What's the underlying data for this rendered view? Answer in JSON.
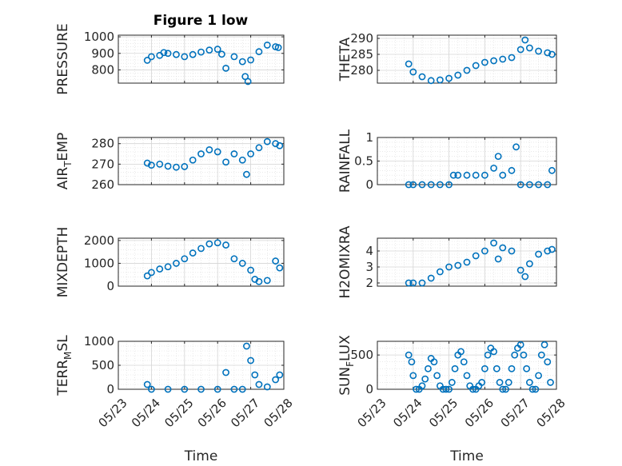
{
  "figure": {
    "title": "Figure 1 low"
  },
  "style": {
    "marker_color": "#0072BD",
    "axis_color": "#262626",
    "grid_color": "#dcdcdc"
  },
  "chart_data": [
    {
      "type": "scatter",
      "key": "pressure",
      "ylabel": "PRESSURE",
      "xlim": [
        "05/23",
        "05/28"
      ],
      "ylim": [
        720,
        1010
      ],
      "yticks": [
        800,
        900,
        1000
      ],
      "yticklabels": [
        "800",
        "900",
        "1000"
      ],
      "xticklabels": [],
      "xlabel": "",
      "grid": true,
      "marker": "circle",
      "x": [
        "05/23 21:00",
        "05/24 00:00",
        "05/24 06:00",
        "05/24 09:00",
        "05/24 12:00",
        "05/24 18:00",
        "05/25 00:00",
        "05/25 06:00",
        "05/25 12:00",
        "05/25 18:00",
        "05/26 00:00",
        "05/26 03:00",
        "05/26 06:00",
        "05/26 12:00",
        "05/26 18:00",
        "05/26 20:00",
        "05/26 22:00",
        "05/27 00:00",
        "05/27 06:00",
        "05/27 12:00",
        "05/27 18:00",
        "05/27 20:00"
      ],
      "y": [
        858,
        880,
        888,
        905,
        900,
        893,
        880,
        893,
        908,
        920,
        925,
        895,
        810,
        880,
        850,
        760,
        730,
        860,
        910,
        950,
        940,
        935
      ]
    },
    {
      "type": "scatter",
      "key": "theta",
      "ylabel": "THETA",
      "xlim": [
        "05/23",
        "05/28"
      ],
      "ylim": [
        276,
        291
      ],
      "yticks": [
        280,
        285,
        290
      ],
      "yticklabels": [
        "280",
        "285",
        "290"
      ],
      "xticklabels": [],
      "xlabel": "",
      "grid": true,
      "marker": "circle",
      "x": [
        "05/23 21:00",
        "05/24 00:00",
        "05/24 06:00",
        "05/24 12:00",
        "05/24 18:00",
        "05/25 00:00",
        "05/25 06:00",
        "05/25 12:00",
        "05/25 18:00",
        "05/26 00:00",
        "05/26 06:00",
        "05/26 12:00",
        "05/26 18:00",
        "05/27 00:00",
        "05/27 03:00",
        "05/27 06:00",
        "05/27 12:00",
        "05/27 18:00",
        "05/27 21:00"
      ],
      "y": [
        282,
        279.5,
        278,
        276.8,
        277,
        277.5,
        278.5,
        280,
        281.5,
        282.5,
        283,
        283.5,
        284,
        286.5,
        289.5,
        287,
        286,
        285.5,
        285
      ]
    },
    {
      "type": "scatter",
      "key": "air_temp",
      "ylabel": "AIR_TEMP",
      "ylabel_parts": [
        "AIR",
        "T",
        "EMP"
      ],
      "xlim": [
        "05/23",
        "05/28"
      ],
      "ylim": [
        260,
        283
      ],
      "yticks": [
        260,
        270,
        280
      ],
      "yticklabels": [
        "260",
        "270",
        "280"
      ],
      "xticklabels": [],
      "xlabel": "",
      "grid": true,
      "marker": "circle",
      "x": [
        "05/23 21:00",
        "05/24 00:00",
        "05/24 06:00",
        "05/24 12:00",
        "05/24 18:00",
        "05/25 00:00",
        "05/25 06:00",
        "05/25 12:00",
        "05/25 18:00",
        "05/26 00:00",
        "05/26 06:00",
        "05/26 12:00",
        "05/26 18:00",
        "05/26 21:00",
        "05/27 00:00",
        "05/27 06:00",
        "05/27 12:00",
        "05/27 18:00",
        "05/27 21:00"
      ],
      "y": [
        270.5,
        269.5,
        270,
        269,
        268.5,
        268.8,
        272,
        275,
        277,
        276,
        271,
        275,
        272,
        265,
        275,
        278,
        281,
        280,
        279
      ]
    },
    {
      "type": "scatter",
      "key": "rainfall",
      "ylabel": "RAINFALL",
      "xlim": [
        "05/23",
        "05/28"
      ],
      "ylim": [
        0,
        1
      ],
      "yticks": [
        0,
        0.5,
        1
      ],
      "yticklabels": [
        "0",
        "0.5",
        "1"
      ],
      "xticklabels": [],
      "xlabel": "",
      "grid": true,
      "marker": "circle",
      "x": [
        "05/23 21:00",
        "05/24 00:00",
        "05/24 06:00",
        "05/24 12:00",
        "05/24 18:00",
        "05/25 00:00",
        "05/25 03:00",
        "05/25 06:00",
        "05/25 12:00",
        "05/25 18:00",
        "05/26 00:00",
        "05/26 06:00",
        "05/26 09:00",
        "05/26 12:00",
        "05/26 18:00",
        "05/26 21:00",
        "05/27 00:00",
        "05/27 06:00",
        "05/27 12:00",
        "05/27 18:00",
        "05/27 21:00"
      ],
      "y": [
        0,
        0,
        0,
        0,
        0,
        0,
        0.2,
        0.2,
        0.2,
        0.2,
        0.2,
        0.35,
        0.6,
        0.2,
        0.3,
        0.8,
        0,
        0,
        0,
        0,
        0.3
      ]
    },
    {
      "type": "scatter",
      "key": "mixdepth",
      "ylabel": "MIXDEPTH",
      "xlim": [
        "05/23",
        "05/28"
      ],
      "ylim": [
        0,
        2100
      ],
      "yticks": [
        0,
        1000,
        2000
      ],
      "yticklabels": [
        "0",
        "1000",
        "2000"
      ],
      "xticklabels": [],
      "xlabel": "",
      "grid": true,
      "marker": "circle",
      "x": [
        "05/23 21:00",
        "05/24 00:00",
        "05/24 06:00",
        "05/24 12:00",
        "05/24 18:00",
        "05/25 00:00",
        "05/25 06:00",
        "05/25 12:00",
        "05/25 18:00",
        "05/26 00:00",
        "05/26 06:00",
        "05/26 12:00",
        "05/26 18:00",
        "05/27 00:00",
        "05/27 03:00",
        "05/27 06:00",
        "05/27 12:00",
        "05/27 18:00",
        "05/27 21:00"
      ],
      "y": [
        450,
        600,
        750,
        850,
        1000,
        1200,
        1450,
        1650,
        1850,
        1900,
        1800,
        1200,
        1000,
        700,
        300,
        200,
        250,
        1100,
        800
      ]
    },
    {
      "type": "scatter",
      "key": "h2omixra",
      "ylabel": "H2OMIXRA",
      "xlim": [
        "05/23",
        "05/28"
      ],
      "ylim": [
        1.8,
        4.8
      ],
      "yticks": [
        2,
        3,
        4
      ],
      "yticklabels": [
        "2",
        "3",
        "4"
      ],
      "xticklabels": [],
      "xlabel": "",
      "grid": true,
      "marker": "circle",
      "x": [
        "05/23 21:00",
        "05/24 00:00",
        "05/24 06:00",
        "05/24 12:00",
        "05/24 18:00",
        "05/25 00:00",
        "05/25 06:00",
        "05/25 12:00",
        "05/25 18:00",
        "05/26 00:00",
        "05/26 06:00",
        "05/26 09:00",
        "05/26 12:00",
        "05/26 18:00",
        "05/27 00:00",
        "05/27 03:00",
        "05/27 06:00",
        "05/27 12:00",
        "05/27 18:00",
        "05/27 21:00"
      ],
      "y": [
        2,
        2,
        2,
        2.3,
        2.7,
        3,
        3.1,
        3.3,
        3.7,
        4,
        4.5,
        3.5,
        4.2,
        4,
        2.8,
        2.4,
        3.2,
        3.8,
        4,
        4.1
      ]
    },
    {
      "type": "scatter",
      "key": "terr_msl",
      "ylabel": "TERR_MSL",
      "ylabel_parts": [
        "TERR",
        "M",
        "SL"
      ],
      "xlim": [
        "05/23",
        "05/28"
      ],
      "ylim": [
        0,
        1000
      ],
      "yticks": [
        0,
        500,
        1000
      ],
      "yticklabels": [
        "0",
        "500",
        "1000"
      ],
      "xticklabels": [
        "05/23",
        "05/24",
        "05/25",
        "05/26",
        "05/27",
        "05/28"
      ],
      "xlabel": "Time",
      "grid": true,
      "marker": "circle",
      "x": [
        "05/23 21:00",
        "05/24 00:00",
        "05/24 12:00",
        "05/25 00:00",
        "05/25 12:00",
        "05/26 00:00",
        "05/26 06:00",
        "05/26 12:00",
        "05/26 18:00",
        "05/26 21:00",
        "05/27 00:00",
        "05/27 03:00",
        "05/27 06:00",
        "05/27 12:00",
        "05/27 18:00",
        "05/27 21:00"
      ],
      "y": [
        100,
        0,
        0,
        0,
        0,
        0,
        350,
        0,
        0,
        900,
        600,
        300,
        100,
        50,
        200,
        300
      ]
    },
    {
      "type": "scatter",
      "key": "sun_flux",
      "ylabel": "SUN_FLUX",
      "ylabel_parts": [
        "SUN",
        "F",
        "LUX"
      ],
      "xlim": [
        "05/23",
        "05/28"
      ],
      "ylim": [
        0,
        700
      ],
      "yticks": [
        0,
        500
      ],
      "yticklabels": [
        "0",
        "500"
      ],
      "xticklabels": [
        "05/23",
        "05/24",
        "05/25",
        "05/26",
        "05/27",
        "05/28"
      ],
      "xlabel": "Time",
      "grid": true,
      "marker": "circle",
      "x": [
        "05/23 21:00",
        "05/23 23:00",
        "05/24 00:00",
        "05/24 02:00",
        "05/24 04:00",
        "05/24 06:00",
        "05/24 08:00",
        "05/24 10:00",
        "05/24 12:00",
        "05/24 14:00",
        "05/24 16:00",
        "05/24 18:00",
        "05/24 20:00",
        "05/24 22:00",
        "05/25 00:00",
        "05/25 02:00",
        "05/25 04:00",
        "05/25 06:00",
        "05/25 08:00",
        "05/25 10:00",
        "05/25 12:00",
        "05/25 14:00",
        "05/25 16:00",
        "05/25 18:00",
        "05/25 20:00",
        "05/25 22:00",
        "05/26 00:00",
        "05/26 02:00",
        "05/26 04:00",
        "05/26 06:00",
        "05/26 08:00",
        "05/26 10:00",
        "05/26 12:00",
        "05/26 14:00",
        "05/26 16:00",
        "05/26 18:00",
        "05/26 20:00",
        "05/26 22:00",
        "05/27 00:00",
        "05/27 02:00",
        "05/27 04:00",
        "05/27 06:00",
        "05/27 08:00",
        "05/27 10:00",
        "05/27 12:00",
        "05/27 14:00",
        "05/27 16:00",
        "05/27 18:00",
        "05/27 20:00"
      ],
      "y": [
        500,
        400,
        200,
        0,
        0,
        50,
        150,
        300,
        450,
        400,
        200,
        50,
        0,
        0,
        0,
        100,
        300,
        500,
        550,
        400,
        200,
        50,
        0,
        0,
        50,
        100,
        300,
        500,
        600,
        550,
        300,
        100,
        0,
        0,
        100,
        300,
        500,
        600,
        650,
        500,
        300,
        100,
        0,
        0,
        200,
        500,
        650,
        400,
        100
      ]
    }
  ]
}
